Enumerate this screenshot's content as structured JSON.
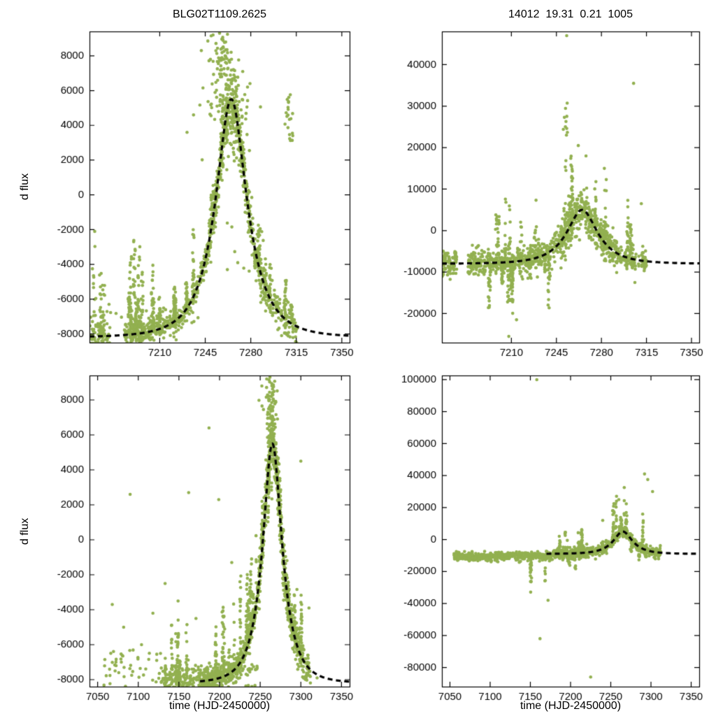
{
  "figure": {
    "background": "#ffffff",
    "point_color": "#92b050",
    "curve_color": "#000000",
    "axis_color": "#000000"
  },
  "chart_data": [
    {
      "id": "top-left",
      "type": "scatter",
      "title": "BLG02T1109.2625",
      "ylabel": "d flux",
      "xlabel": null,
      "xlim": [
        7156,
        7356
      ],
      "ylim": [
        -8500,
        9400
      ],
      "xticks": [
        7210,
        7245,
        7280,
        7315,
        7350
      ],
      "yticks": [
        -8000,
        -6000,
        -4000,
        -2000,
        0,
        2000,
        4000,
        6000,
        8000
      ],
      "model_curve": {
        "shape": "paczynski",
        "t0": 7265,
        "tE": 25,
        "u0": 0.5,
        "fs": 11583,
        "f0": -8200
      },
      "scatter": {
        "seed": 11,
        "clusters": [
          {
            "type": "band",
            "x": [
              7156,
              7172
            ],
            "n": 60,
            "center": "curve",
            "sigma": 500
          },
          {
            "type": "columns",
            "x": [
              7157,
              7171
            ],
            "cols": 5,
            "pts": [
              6,
              18
            ],
            "base": "curve",
            "dir": 1,
            "hmax": 5500
          },
          {
            "type": "points",
            "pts": [
              [
                7160,
                -2100
              ],
              [
                7166,
                -5200
              ],
              [
                7171,
                -6300
              ]
            ]
          },
          {
            "type": "band",
            "x": [
              7183,
              7245
            ],
            "n": 320,
            "center": "curve",
            "sigma": 300
          },
          {
            "type": "columns",
            "x": [
              7184,
              7243
            ],
            "cols": 14,
            "pts": [
              8,
              28
            ],
            "base": "curve",
            "dir": 1,
            "hmax": 5600
          },
          {
            "type": "band",
            "x": [
              7245,
              7292
            ],
            "n": 480,
            "center": "curve",
            "sigma": 650
          },
          {
            "type": "columns",
            "x": [
              7247,
              7290
            ],
            "cols": 9,
            "pts": [
              8,
              22
            ],
            "base": "curve",
            "dir": 1,
            "hmax": 3200
          },
          {
            "type": "columns",
            "x": [
              7252,
              7288
            ],
            "cols": 6,
            "pts": [
              6,
              16
            ],
            "base": "curve",
            "dir": -1,
            "hmax": 3800
          },
          {
            "type": "blob",
            "cx": 7258,
            "cy": 7700,
            "sx": 4.5,
            "sy": 950,
            "n": 75
          },
          {
            "type": "blob",
            "cx": 7265,
            "cy": 4600,
            "sx": 8,
            "sy": 1500,
            "n": 110
          },
          {
            "type": "band",
            "x": [
              7292,
              7316
            ],
            "n": 110,
            "center": "curve",
            "sigma": 550
          },
          {
            "type": "columns",
            "x": [
              7293,
              7314
            ],
            "cols": 6,
            "pts": [
              6,
              16
            ],
            "base": "curve",
            "dir": 1,
            "hmax": 4000
          },
          {
            "type": "blob",
            "cx": 7309,
            "cy": 4200,
            "sx": 2.5,
            "sy": 900,
            "n": 22
          },
          {
            "type": "spray",
            "x": [
              7240,
              7290
            ],
            "y": [
              -5000,
              -1500
            ],
            "n": 12
          },
          {
            "type": "spray",
            "x": [
              7157,
              7240
            ],
            "y": [
              -8400,
              -6500
            ],
            "n": 60
          },
          {
            "type": "points",
            "pts": [
              [
                7247,
                8850
              ],
              [
                7242,
                8300
              ],
              [
                7251,
                9200
              ],
              [
                7256,
                9300
              ],
              [
                7231,
                3600
              ],
              [
                7236,
                4600
              ],
              [
                7270,
                -3900
              ],
              [
                7262,
                -4300
              ]
            ]
          }
        ]
      }
    },
    {
      "id": "top-right",
      "type": "scatter",
      "title": "14012  19.31  0.21  1005",
      "ylabel": null,
      "xlabel": null,
      "xlim": [
        7156,
        7356
      ],
      "ylim": [
        -27000,
        48000
      ],
      "xticks": [
        7210,
        7245,
        7280,
        7315,
        7350
      ],
      "yticks": [
        -20000,
        -10000,
        0,
        10000,
        20000,
        30000,
        40000
      ],
      "model_curve": {
        "shape": "paczynski",
        "t0": 7265,
        "tE": 25,
        "u0": 0.5,
        "fs": 10991,
        "f0": -8000
      },
      "scatter": {
        "seed": 23,
        "clusters": [
          {
            "type": "band",
            "x": [
              7156,
              7168
            ],
            "n": 90,
            "center": "curve",
            "sigma": 1700
          },
          {
            "type": "band",
            "x": [
              7176,
              7248
            ],
            "n": 420,
            "center": "curve",
            "sigma": 1600
          },
          {
            "type": "columns",
            "x": [
              7190,
              7244
            ],
            "cols": 10,
            "pts": [
              8,
              30
            ],
            "base": "curve",
            "dir": -1,
            "hmax": 15000
          },
          {
            "type": "columns",
            "x": [
              7192,
              7246
            ],
            "cols": 9,
            "pts": [
              6,
              22
            ],
            "base": "curve",
            "dir": 1,
            "hmax": 17000
          },
          {
            "type": "band",
            "x": [
              7248,
              7292
            ],
            "n": 420,
            "center": "curve",
            "sigma": 2300
          },
          {
            "type": "columns",
            "x": [
              7249,
              7290
            ],
            "cols": 7,
            "pts": [
              6,
              18
            ],
            "base": "curve",
            "dir": 1,
            "hmax": 20000
          },
          {
            "type": "columns",
            "x": [
              7252,
              7286
            ],
            "cols": 4,
            "pts": [
              5,
              12
            ],
            "base": "curve",
            "dir": -1,
            "hmax": 9000
          },
          {
            "type": "blob",
            "cx": 7252,
            "cy": 24000,
            "sx": 1.5,
            "sy": 3500,
            "n": 10
          },
          {
            "type": "band",
            "x": [
              7292,
              7316
            ],
            "n": 90,
            "center": "curve",
            "sigma": 1400
          },
          {
            "type": "columns",
            "x": [
              7298,
              7308
            ],
            "cols": 3,
            "pts": [
              8,
              16
            ],
            "base": "curve",
            "dir": 1,
            "hmax": 30000
          },
          {
            "type": "columns",
            "x": [
              7299,
              7307
            ],
            "cols": 2,
            "pts": [
              5,
              10
            ],
            "base": "curve",
            "dir": -1,
            "hmax": 6000
          },
          {
            "type": "points",
            "pts": [
              [
                7253,
                47000
              ],
              [
                7305,
                35500
              ],
              [
                7208,
                -25500
              ],
              [
                7214,
                -21500
              ],
              [
                7262,
                20500
              ],
              [
                7268,
                18000
              ],
              [
                7306,
                -12500
              ],
              [
                7311,
                6500
              ]
            ]
          }
        ]
      }
    },
    {
      "id": "bottom-left",
      "type": "scatter",
      "title": null,
      "ylabel": "d flux",
      "xlabel": "time (HJD-2450000)",
      "xlim": [
        7040,
        7360
      ],
      "ylim": [
        -8400,
        9400
      ],
      "xticks": [
        7050,
        7100,
        7150,
        7200,
        7250,
        7300,
        7350
      ],
      "yticks": [
        -8000,
        -6000,
        -4000,
        -2000,
        0,
        2000,
        4000,
        6000,
        8000
      ],
      "model_curve": {
        "shape": "paczynski",
        "t0": 7265,
        "tE": 25,
        "u0": 0.5,
        "fs": 11583,
        "f0": -8200,
        "draw_from": 7176
      },
      "scatter": {
        "seed": 37,
        "clusters": [
          {
            "type": "spray",
            "x": [
              7057,
              7128
            ],
            "y": [
              -8400,
              -6300
            ],
            "n": 45
          },
          {
            "type": "points",
            "pts": [
              [
                7068,
                -3700
              ],
              [
                7090,
                2600
              ],
              [
                7082,
                -5000
              ],
              [
                7104,
                -6000
              ],
              [
                7118,
                -4200
              ],
              [
                7133,
                -2500
              ],
              [
                7149,
                -3500
              ],
              [
                7162,
                2700
              ],
              [
                7187,
                6400
              ],
              [
                7199,
                2300
              ],
              [
                7215,
                -1300
              ],
              [
                7171,
                -4500
              ]
            ]
          },
          {
            "type": "band",
            "x": [
              7128,
              7178
            ],
            "n": 140,
            "center": -7900,
            "sigma": 400
          },
          {
            "type": "columns",
            "x": [
              7130,
              7176
            ],
            "cols": 8,
            "pts": [
              6,
              20
            ],
            "base": -8300,
            "dir": 1,
            "hmax": 4500
          },
          {
            "type": "band",
            "x": [
              7178,
              7248
            ],
            "n": 380,
            "center": "curve",
            "sigma": 300
          },
          {
            "type": "columns",
            "x": [
              7180,
              7246
            ],
            "cols": 16,
            "pts": [
              8,
              28
            ],
            "base": "curve",
            "dir": 1,
            "hmax": 5800
          },
          {
            "type": "band",
            "x": [
              7248,
              7290
            ],
            "n": 480,
            "center": "curve",
            "sigma": 700
          },
          {
            "type": "columns",
            "x": [
              7250,
              7288
            ],
            "cols": 9,
            "pts": [
              8,
              22
            ],
            "base": "curve",
            "dir": 1,
            "hmax": 3500
          },
          {
            "type": "columns",
            "x": [
              7255,
              7288
            ],
            "cols": 6,
            "pts": [
              6,
              16
            ],
            "base": "curve",
            "dir": -1,
            "hmax": 4200
          },
          {
            "type": "blob",
            "cx": 7263,
            "cy": 7600,
            "sx": 4,
            "sy": 950,
            "n": 80
          },
          {
            "type": "band",
            "x": [
              7290,
              7312
            ],
            "n": 110,
            "center": "curve",
            "sigma": 550
          },
          {
            "type": "columns",
            "x": [
              7291,
              7310
            ],
            "cols": 6,
            "pts": [
              6,
              16
            ],
            "base": "curve",
            "dir": 1,
            "hmax": 4200
          },
          {
            "type": "points",
            "pts": [
              [
                7300,
                4500
              ],
              [
                7310,
                -3900
              ],
              [
                7320,
                -7900
              ],
              [
                7258,
                9200
              ],
              [
                7262,
                9300
              ],
              [
                7252,
                8800
              ]
            ]
          },
          {
            "type": "spray",
            "x": [
              7180,
              7248
            ],
            "y": [
              -8400,
              -7000
            ],
            "n": 70
          }
        ]
      }
    },
    {
      "id": "bottom-right",
      "type": "scatter",
      "title": null,
      "ylabel": null,
      "xlabel": "time (HJD-2450000)",
      "xlim": [
        7040,
        7360
      ],
      "ylim": [
        -92000,
        102600
      ],
      "xticks": [
        7050,
        7100,
        7150,
        7200,
        7250,
        7300,
        7350
      ],
      "yticks": [
        -80000,
        -60000,
        -40000,
        -20000,
        0,
        20000,
        40000,
        60000,
        80000,
        100000
      ],
      "model_curve": {
        "shape": "paczynski",
        "t0": 7265,
        "tE": 25,
        "u0": 0.5,
        "fs": 11836,
        "f0": -9000,
        "draw_from": 7170
      },
      "scatter": {
        "seed": 53,
        "clusters": [
          {
            "type": "band",
            "x": [
              7055,
              7178
            ],
            "n": 420,
            "center": -10500,
            "sigma": 1300
          },
          {
            "type": "columns",
            "x": [
              7143,
              7172
            ],
            "cols": 4,
            "pts": [
              5,
              14
            ],
            "base": -11000,
            "dir": -1,
            "hmax": 27000
          },
          {
            "type": "band",
            "x": [
              7178,
              7312
            ],
            "n": 650,
            "center": "curve",
            "sigma": 1600
          },
          {
            "type": "columns",
            "x": [
              7185,
              7215
            ],
            "cols": 6,
            "pts": [
              6,
              18
            ],
            "base": "curve",
            "dir": 1,
            "hmax": 16000
          },
          {
            "type": "columns",
            "x": [
              7188,
              7218
            ],
            "cols": 5,
            "pts": [
              5,
              14
            ],
            "base": "curve",
            "dir": -1,
            "hmax": 11000
          },
          {
            "type": "columns",
            "x": [
              7250,
              7302
            ],
            "cols": 8,
            "pts": [
              6,
              18
            ],
            "base": "curve",
            "dir": 1,
            "hmax": 30000
          },
          {
            "type": "columns",
            "x": [
              7253,
              7300
            ],
            "cols": 5,
            "pts": [
              5,
              12
            ],
            "base": "curve",
            "dir": -1,
            "hmax": 10000
          },
          {
            "type": "points",
            "pts": [
              [
                7158,
                100000
              ],
              [
                7162,
                -62000
              ],
              [
                7225,
                -86000
              ],
              [
                7292,
                41000
              ],
              [
                7296,
                37500
              ],
              [
                7302,
                30000
              ],
              [
                7260,
                25000
              ],
              [
                7240,
                12000
              ],
              [
                7172,
                -38000
              ]
            ]
          }
        ]
      }
    }
  ]
}
